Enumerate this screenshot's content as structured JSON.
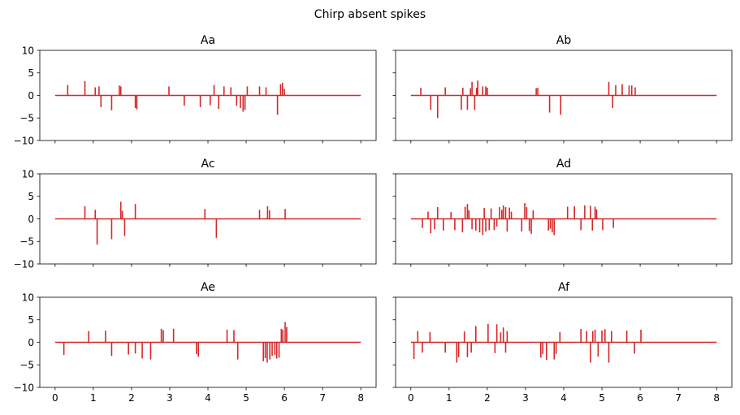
{
  "figure": {
    "suptitle": "Chirp absent spikes"
  },
  "colors": {
    "trace": "#d62728",
    "axes": "#000000",
    "background": "#ffffff"
  },
  "chart_data": {
    "type": "line",
    "xlim": [
      -0.4,
      8.4
    ],
    "ylim": [
      -10,
      10
    ],
    "x_ticks": [
      "0",
      "1",
      "2",
      "3",
      "4",
      "5",
      "6",
      "7",
      "8"
    ],
    "y_ticks": [
      "10",
      "5",
      "0",
      "−5",
      "−10"
    ],
    "x_tick_values": [
      0,
      1,
      2,
      3,
      4,
      5,
      6,
      7,
      8
    ],
    "y_tick_values": [
      10,
      5,
      0,
      -5,
      -10
    ],
    "baseline": {
      "x_start": 0,
      "x_end": 8,
      "y": 0
    },
    "panels": [
      {
        "title": "Aa",
        "spikes": [
          [
            0.33,
            2.3
          ],
          [
            0.78,
            3.2
          ],
          [
            1.05,
            1.8
          ],
          [
            1.15,
            2.0
          ],
          [
            1.2,
            -2.6
          ],
          [
            1.48,
            -3.3
          ],
          [
            1.68,
            2.2
          ],
          [
            1.72,
            2.0
          ],
          [
            2.1,
            -2.8
          ],
          [
            2.14,
            -3.1
          ],
          [
            2.98,
            2.0
          ],
          [
            3.38,
            -2.3
          ],
          [
            3.8,
            -2.6
          ],
          [
            4.06,
            -2.2
          ],
          [
            4.16,
            2.3
          ],
          [
            4.28,
            -3.0
          ],
          [
            4.42,
            2.0
          ],
          [
            4.6,
            1.8
          ],
          [
            4.75,
            -2.3
          ],
          [
            4.85,
            -2.8
          ],
          [
            4.92,
            -3.6
          ],
          [
            4.97,
            -3.2
          ],
          [
            5.03,
            2.0
          ],
          [
            5.35,
            2.0
          ],
          [
            5.52,
            1.8
          ],
          [
            5.82,
            -4.3
          ],
          [
            5.9,
            2.5
          ],
          [
            5.95,
            2.8
          ],
          [
            6.0,
            1.5
          ]
        ]
      },
      {
        "title": "Ab",
        "spikes": [
          [
            0.26,
            1.7
          ],
          [
            0.52,
            -3.2
          ],
          [
            0.7,
            -5.0
          ],
          [
            0.9,
            1.8
          ],
          [
            1.32,
            -3.2
          ],
          [
            1.36,
            1.7
          ],
          [
            1.48,
            -3.2
          ],
          [
            1.56,
            1.6
          ],
          [
            1.6,
            3.0
          ],
          [
            1.67,
            -3.2
          ],
          [
            1.72,
            1.7
          ],
          [
            1.75,
            3.3
          ],
          [
            1.88,
            2.0
          ],
          [
            1.96,
            2.0
          ],
          [
            2.0,
            1.7
          ],
          [
            3.28,
            1.6
          ],
          [
            3.32,
            1.7
          ],
          [
            3.63,
            -3.8
          ],
          [
            3.92,
            -4.3
          ],
          [
            5.18,
            3.0
          ],
          [
            5.28,
            -2.8
          ],
          [
            5.36,
            2.3
          ],
          [
            5.53,
            2.5
          ],
          [
            5.71,
            2.2
          ],
          [
            5.78,
            2.2
          ],
          [
            5.87,
            1.8
          ]
        ]
      },
      {
        "title": "Ac",
        "spikes": [
          [
            0.78,
            2.8
          ],
          [
            1.05,
            2.0
          ],
          [
            1.1,
            -5.7
          ],
          [
            1.48,
            -4.5
          ],
          [
            1.72,
            3.8
          ],
          [
            1.76,
            1.8
          ],
          [
            1.82,
            -3.8
          ],
          [
            2.1,
            3.3
          ],
          [
            3.92,
            2.2
          ],
          [
            4.22,
            -4.2
          ],
          [
            5.35,
            2.0
          ],
          [
            5.56,
            2.8
          ],
          [
            5.61,
            1.9
          ],
          [
            6.02,
            2.2
          ]
        ]
      },
      {
        "title": "Ad",
        "spikes": [
          [
            0.3,
            -2.0
          ],
          [
            0.45,
            1.6
          ],
          [
            0.52,
            -3.2
          ],
          [
            0.62,
            -2.3
          ],
          [
            0.7,
            2.6
          ],
          [
            0.85,
            -2.6
          ],
          [
            1.05,
            1.5
          ],
          [
            1.15,
            -2.5
          ],
          [
            1.35,
            -3.0
          ],
          [
            1.42,
            2.7
          ],
          [
            1.48,
            3.3
          ],
          [
            1.52,
            1.9
          ],
          [
            1.6,
            -2.3
          ],
          [
            1.7,
            -2.6
          ],
          [
            1.8,
            -3.0
          ],
          [
            1.88,
            -3.6
          ],
          [
            1.92,
            2.4
          ],
          [
            1.96,
            -2.8
          ],
          [
            2.05,
            -2.5
          ],
          [
            2.1,
            2.3
          ],
          [
            2.18,
            -2.5
          ],
          [
            2.25,
            -1.7
          ],
          [
            2.32,
            2.6
          ],
          [
            2.38,
            2.0
          ],
          [
            2.42,
            3.0
          ],
          [
            2.48,
            2.6
          ],
          [
            2.52,
            -2.8
          ],
          [
            2.58,
            2.5
          ],
          [
            2.63,
            1.6
          ],
          [
            2.9,
            -2.8
          ],
          [
            2.98,
            3.5
          ],
          [
            3.03,
            2.6
          ],
          [
            3.1,
            -2.7
          ],
          [
            3.15,
            -3.3
          ],
          [
            3.2,
            1.9
          ],
          [
            3.6,
            -2.6
          ],
          [
            3.65,
            -2.2
          ],
          [
            3.7,
            -3.0
          ],
          [
            3.75,
            -3.6
          ],
          [
            4.1,
            2.7
          ],
          [
            4.28,
            2.8
          ],
          [
            4.45,
            -2.5
          ],
          [
            4.55,
            3.0
          ],
          [
            4.7,
            2.9
          ],
          [
            4.75,
            -2.6
          ],
          [
            4.82,
            2.7
          ],
          [
            4.86,
            2.1
          ],
          [
            5.02,
            -2.5
          ],
          [
            5.3,
            -2.0
          ]
        ]
      },
      {
        "title": "Ae",
        "spikes": [
          [
            0.23,
            -2.8
          ],
          [
            0.88,
            2.5
          ],
          [
            1.32,
            2.6
          ],
          [
            1.48,
            -3.0
          ],
          [
            1.92,
            -2.7
          ],
          [
            2.1,
            -2.5
          ],
          [
            2.28,
            -3.6
          ],
          [
            2.5,
            -3.8
          ],
          [
            2.78,
            3.0
          ],
          [
            2.83,
            2.7
          ],
          [
            3.1,
            3.0
          ],
          [
            3.7,
            -2.6
          ],
          [
            3.75,
            -3.2
          ],
          [
            4.5,
            2.8
          ],
          [
            4.68,
            2.7
          ],
          [
            4.78,
            -3.8
          ],
          [
            5.45,
            -4.2
          ],
          [
            5.5,
            -3.5
          ],
          [
            5.55,
            -4.5
          ],
          [
            5.62,
            -3.8
          ],
          [
            5.68,
            -3.0
          ],
          [
            5.75,
            -2.8
          ],
          [
            5.8,
            -3.6
          ],
          [
            5.86,
            -3.4
          ],
          [
            5.92,
            3.0
          ],
          [
            5.96,
            2.8
          ],
          [
            6.02,
            4.5
          ],
          [
            6.06,
            3.4
          ]
        ]
      },
      {
        "title": "Af",
        "spikes": [
          [
            0.08,
            -3.7
          ],
          [
            0.18,
            2.5
          ],
          [
            0.3,
            -2.3
          ],
          [
            0.5,
            2.3
          ],
          [
            0.9,
            -2.3
          ],
          [
            1.2,
            -4.5
          ],
          [
            1.25,
            -3.3
          ],
          [
            1.4,
            2.4
          ],
          [
            1.48,
            -3.3
          ],
          [
            1.58,
            -2.3
          ],
          [
            1.7,
            3.6
          ],
          [
            2.02,
            4.1
          ],
          [
            2.2,
            -2.4
          ],
          [
            2.25,
            4.0
          ],
          [
            2.35,
            2.2
          ],
          [
            2.42,
            3.3
          ],
          [
            2.48,
            -2.3
          ],
          [
            2.52,
            2.5
          ],
          [
            3.4,
            -3.4
          ],
          [
            3.45,
            -2.6
          ],
          [
            3.55,
            -3.9
          ],
          [
            3.75,
            -3.8
          ],
          [
            3.8,
            -2.6
          ],
          [
            3.9,
            2.3
          ],
          [
            4.45,
            3.0
          ],
          [
            4.6,
            2.5
          ],
          [
            4.7,
            -4.5
          ],
          [
            4.76,
            2.5
          ],
          [
            4.82,
            2.8
          ],
          [
            4.9,
            -3.2
          ],
          [
            5.0,
            2.6
          ],
          [
            5.08,
            2.9
          ],
          [
            5.18,
            -4.5
          ],
          [
            5.25,
            2.5
          ],
          [
            5.65,
            2.6
          ],
          [
            5.85,
            -2.5
          ],
          [
            6.02,
            2.8
          ]
        ]
      }
    ]
  }
}
